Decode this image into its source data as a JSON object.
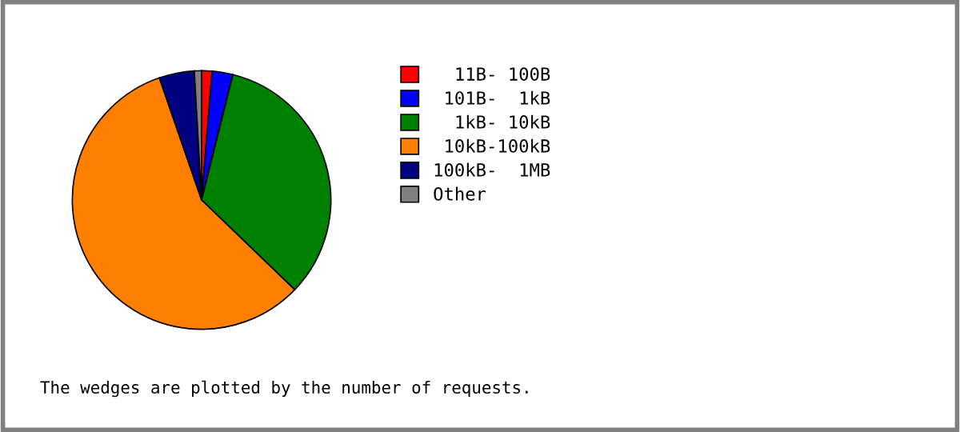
{
  "chart_data": {
    "type": "pie",
    "categories": [
      "  11B- 100B",
      " 101B-  1kB",
      "  1kB- 10kB",
      " 10kB-100kB",
      "100kB-  1MB",
      "Other"
    ],
    "values": [
      1.3,
      2.6,
      33.3,
      57.5,
      4.4,
      0.9
    ],
    "colors": [
      "#ff0000",
      "#0000ff",
      "#008000",
      "#ff8000",
      "#000080",
      "#808080"
    ],
    "legend": "right",
    "annotations": [
      "The wedges are plotted by the number of requests."
    ]
  }
}
